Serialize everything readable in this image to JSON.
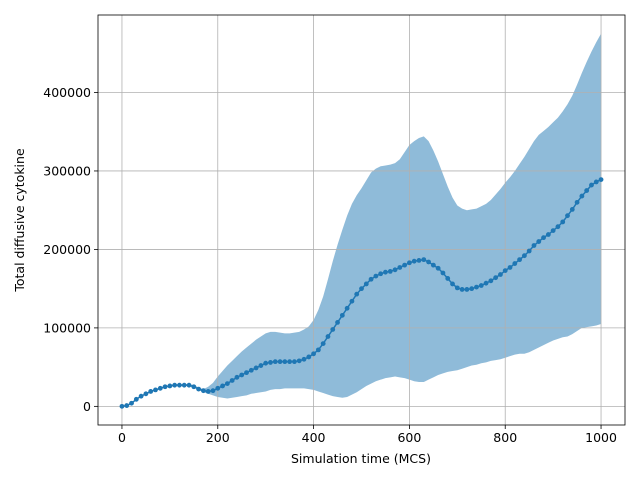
{
  "chart_data": {
    "type": "line",
    "xlabel": "Simulation time (MCS)",
    "ylabel": "Total diffusive cytokine",
    "x": [
      0,
      10,
      20,
      30,
      40,
      50,
      60,
      70,
      80,
      90,
      100,
      110,
      120,
      130,
      140,
      150,
      160,
      170,
      180,
      190,
      200,
      210,
      220,
      230,
      240,
      250,
      260,
      270,
      280,
      290,
      300,
      310,
      320,
      330,
      340,
      350,
      360,
      370,
      380,
      390,
      400,
      410,
      420,
      430,
      440,
      450,
      460,
      470,
      480,
      490,
      500,
      510,
      520,
      530,
      540,
      550,
      560,
      570,
      580,
      590,
      600,
      610,
      620,
      630,
      640,
      650,
      660,
      670,
      680,
      690,
      700,
      710,
      720,
      730,
      740,
      750,
      760,
      770,
      780,
      790,
      800,
      810,
      820,
      830,
      840,
      850,
      860,
      870,
      880,
      890,
      900,
      910,
      920,
      930,
      940,
      950,
      960,
      970,
      980,
      990,
      1000
    ],
    "series": [
      {
        "color": "#1f77b4",
        "values": [
          0,
          1000,
          4000,
          9000,
          13000,
          16000,
          19000,
          21000,
          23000,
          25000,
          26000,
          27000,
          27000,
          27000,
          27000,
          25000,
          22000,
          20000,
          19000,
          20000,
          23000,
          26000,
          29000,
          33000,
          37000,
          40000,
          43000,
          46000,
          49000,
          52000,
          55000,
          56000,
          57000,
          57000,
          57000,
          57000,
          57000,
          58000,
          60000,
          63000,
          67000,
          72000,
          80000,
          89000,
          98000,
          107000,
          116000,
          125000,
          134000,
          143000,
          150000,
          156000,
          162000,
          166000,
          169000,
          171000,
          172000,
          174000,
          177000,
          180000,
          183000,
          185000,
          186000,
          187000,
          184000,
          180000,
          176000,
          170000,
          163000,
          156000,
          151000,
          149000,
          149000,
          150000,
          152000,
          154000,
          157000,
          160000,
          164000,
          168000,
          173000,
          177000,
          182000,
          187000,
          192000,
          198000,
          205000,
          210000,
          215000,
          219000,
          224000,
          229000,
          235000,
          243000,
          251000,
          260000,
          268000,
          275000,
          282000,
          286000,
          289000
        ]
      }
    ],
    "band": {
      "color": "#8fbbd9",
      "upper": [
        0,
        1000,
        4000,
        9000,
        13000,
        16000,
        19000,
        21000,
        23000,
        25000,
        27000,
        28000,
        28000,
        28000,
        28000,
        27000,
        24000,
        22000,
        25000,
        30000,
        38000,
        45000,
        52000,
        58000,
        64000,
        70000,
        75000,
        80000,
        85000,
        89000,
        93000,
        95000,
        95000,
        94000,
        93000,
        93000,
        94000,
        95000,
        98000,
        102000,
        110000,
        123000,
        140000,
        162000,
        185000,
        206000,
        225000,
        243000,
        258000,
        269000,
        278000,
        288000,
        298000,
        303000,
        306000,
        307000,
        308000,
        310000,
        315000,
        324000,
        333000,
        338000,
        342000,
        344000,
        338000,
        326000,
        312000,
        296000,
        280000,
        266000,
        256000,
        252000,
        250000,
        251000,
        252000,
        255000,
        258000,
        263000,
        270000,
        277000,
        285000,
        292000,
        300000,
        309000,
        318000,
        328000,
        338000,
        346000,
        351000,
        356000,
        362000,
        368000,
        376000,
        385000,
        396000,
        410000,
        425000,
        439000,
        452000,
        464000,
        475000
      ],
      "lower": [
        0,
        1000,
        4000,
        9000,
        13000,
        16000,
        19000,
        21000,
        23000,
        25000,
        26000,
        26000,
        26000,
        26000,
        26000,
        24000,
        21000,
        18000,
        16000,
        14000,
        12000,
        11000,
        10000,
        11000,
        12000,
        13000,
        14000,
        16000,
        17000,
        18000,
        19000,
        21000,
        22000,
        22000,
        23000,
        23000,
        23000,
        23000,
        23000,
        22000,
        21000,
        19000,
        17000,
        15000,
        13000,
        12000,
        11000,
        12000,
        15000,
        18000,
        22000,
        26000,
        29000,
        32000,
        34000,
        36000,
        37000,
        38000,
        37000,
        36000,
        34000,
        32000,
        31000,
        31000,
        34000,
        37000,
        40000,
        42000,
        44000,
        45000,
        46000,
        48000,
        50000,
        52000,
        53000,
        55000,
        56000,
        58000,
        59000,
        60000,
        62000,
        64000,
        66000,
        67000,
        67000,
        69000,
        72000,
        75000,
        78000,
        81000,
        84000,
        86000,
        88000,
        89000,
        92000,
        96000,
        100000,
        101000,
        102000,
        103000,
        105000
      ]
    },
    "xlim": [
      -50,
      1050
    ],
    "ylim": [
      -23750,
      498750
    ],
    "xticks": [
      0,
      200,
      400,
      600,
      800,
      1000
    ],
    "yticks": [
      0,
      100000,
      200000,
      300000,
      400000
    ],
    "grid": true
  }
}
